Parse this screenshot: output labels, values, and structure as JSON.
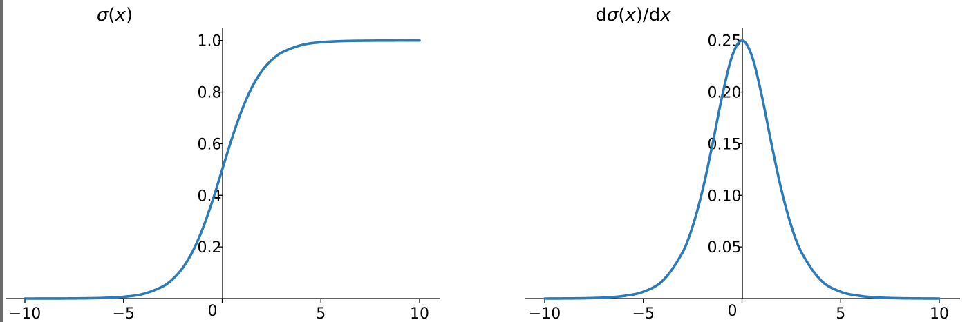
{
  "chart_data": [
    {
      "type": "line",
      "title": "σ(x)",
      "title_parts": [
        "σ",
        "(",
        "x",
        ")"
      ],
      "xlim": [
        -10,
        10
      ],
      "ylim": [
        0,
        1.05
      ],
      "xticks": [
        -10,
        -5,
        0,
        5,
        10
      ],
      "xtick_labels": [
        "−10",
        "−5",
        "0",
        "5",
        "10"
      ],
      "yticks": [
        0.2,
        0.4,
        0.6,
        0.8,
        1.0
      ],
      "ytick_labels": [
        "0.2",
        "0.4",
        "0.6",
        "0.8",
        "1.0"
      ],
      "series": [
        {
          "color": "#2b7bb9",
          "x": [
            -10,
            -9,
            -8,
            -7,
            -6,
            -5,
            -4,
            -3,
            -2.5,
            -2,
            -1.5,
            -1,
            -0.5,
            0,
            0.5,
            1,
            1.5,
            2,
            2.5,
            3,
            4,
            5,
            6,
            7,
            8,
            9,
            10
          ],
          "y": [
            0.0,
            0.0001,
            0.0003,
            0.0009,
            0.0025,
            0.0067,
            0.018,
            0.0474,
            0.0759,
            0.1192,
            0.1824,
            0.2689,
            0.3775,
            0.5,
            0.6225,
            0.7311,
            0.8176,
            0.8808,
            0.9241,
            0.9526,
            0.982,
            0.9933,
            0.9975,
            0.9991,
            0.9997,
            0.9999,
            1.0
          ]
        }
      ],
      "grid": false,
      "spines": "centered"
    },
    {
      "type": "line",
      "title": "dσ(x)/dx",
      "title_parts": [
        "d",
        "σ",
        "(",
        "x",
        ")/d",
        "x"
      ],
      "xlim": [
        -10,
        10
      ],
      "ylim": [
        0,
        0.2625
      ],
      "xticks": [
        -10,
        -5,
        0,
        5,
        10
      ],
      "xtick_labels": [
        "−10",
        "−5",
        "0",
        "5",
        "10"
      ],
      "yticks": [
        0.05,
        0.1,
        0.15,
        0.2,
        0.25
      ],
      "ytick_labels": [
        "0.05",
        "0.10",
        "0.15",
        "0.20",
        "0.25"
      ],
      "series": [
        {
          "color": "#2b7bb9",
          "x": [
            -10,
            -9,
            -8,
            -7,
            -6,
            -5,
            -4,
            -3,
            -2.5,
            -2,
            -1.5,
            -1,
            -0.5,
            0,
            0.5,
            1,
            1.5,
            2,
            2.5,
            3,
            4,
            5,
            6,
            7,
            8,
            9,
            10
          ],
          "y": [
            0.0,
            0.0001,
            0.0003,
            0.0009,
            0.0025,
            0.0066,
            0.0177,
            0.0452,
            0.0701,
            0.105,
            0.1491,
            0.1966,
            0.235,
            0.25,
            0.235,
            0.1966,
            0.1491,
            0.105,
            0.0701,
            0.0452,
            0.0177,
            0.0066,
            0.0025,
            0.0009,
            0.0003,
            0.0001,
            0.0
          ]
        }
      ],
      "grid": false,
      "spines": "centered"
    }
  ]
}
